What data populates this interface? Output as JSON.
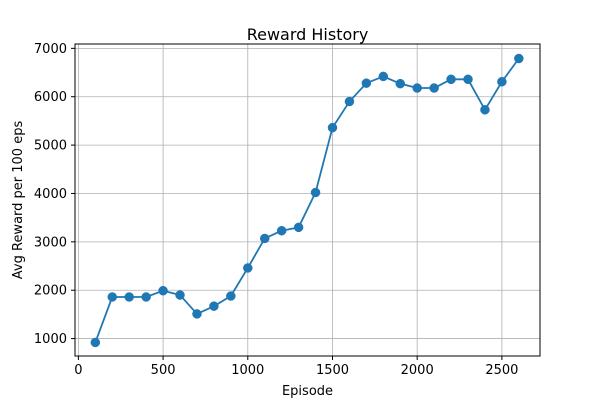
{
  "chart_data": {
    "type": "line",
    "title": "Reward History",
    "xlabel": "Episode",
    "ylabel": "Avg Reward per 100 eps",
    "xlim": [
      -20,
      2725
    ],
    "ylim": [
      640,
      7090
    ],
    "xticks": [
      0,
      500,
      1000,
      1500,
      2000,
      2500
    ],
    "yticks": [
      1000,
      2000,
      3000,
      4000,
      5000,
      6000,
      7000
    ],
    "grid": true,
    "legend": "none",
    "series": [
      {
        "color": "#1f77b4",
        "marker": "circle",
        "x": [
          100,
          200,
          300,
          400,
          500,
          600,
          700,
          800,
          900,
          1000,
          1100,
          1200,
          1300,
          1400,
          1500,
          1600,
          1700,
          1800,
          1900,
          2000,
          2100,
          2200,
          2300,
          2400,
          2500,
          2600
        ],
        "y": [
          920,
          1860,
          1860,
          1860,
          1990,
          1900,
          1510,
          1670,
          1880,
          2460,
          3070,
          3230,
          3300,
          4020,
          5360,
          5900,
          6280,
          6420,
          6270,
          6180,
          6180,
          6360,
          6360,
          5730,
          6310,
          6790
        ]
      }
    ]
  }
}
